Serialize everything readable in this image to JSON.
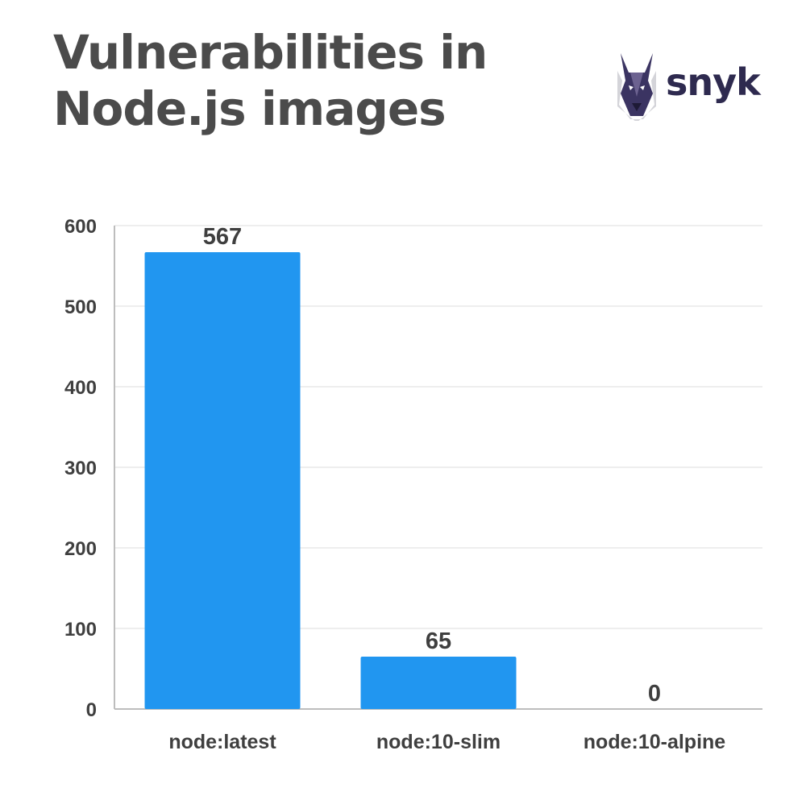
{
  "title": "Vulnerabilities in Node.js images",
  "brand": {
    "name": "snyk",
    "icon": "doberman-dog-icon",
    "text_color": "#2e2a4f"
  },
  "colors": {
    "bar": "#2196f0",
    "gridline": "#eeeeee",
    "axis": "#bdbdbd",
    "text": "#3f3f3f",
    "title": "#4b4b4b"
  },
  "chart_data": {
    "type": "bar",
    "title": "Vulnerabilities in Node.js images",
    "xlabel": "",
    "ylabel": "",
    "categories": [
      "node:latest",
      "node:10-slim",
      "node:10-alpine"
    ],
    "values": [
      567,
      65,
      0
    ],
    "data_labels": [
      "567",
      "65",
      "0"
    ],
    "ylim": [
      0,
      600
    ],
    "yticks": [
      0,
      100,
      200,
      300,
      400,
      500,
      600
    ],
    "grid": true,
    "legend": "none"
  }
}
